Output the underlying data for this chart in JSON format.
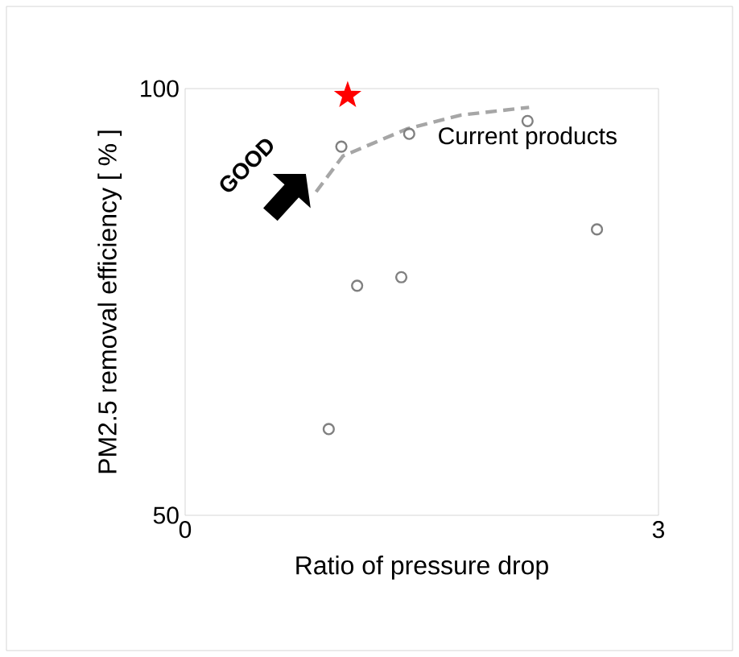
{
  "chart_data": {
    "type": "scatter",
    "xlabel": "Ratio of pressure drop",
    "ylabel": "PM2.5 removal efficiency [ % ]",
    "xlim": [
      0,
      3
    ],
    "xticks": [
      0,
      3
    ],
    "ylim": [
      50,
      100
    ],
    "yticks": [
      50,
      100
    ],
    "grid": false,
    "annotations": [
      "GOOD"
    ],
    "series": [
      {
        "name": "Current products",
        "marker": "circle",
        "color": "#808080",
        "x": [
          0.99,
          1.42,
          2.17,
          2.61,
          1.37,
          1.09,
          0.91
        ],
        "values": [
          93.2,
          94.7,
          96.2,
          83.5,
          77.9,
          76.9,
          60.1
        ]
      },
      {
        "type": "line",
        "line_style": "dashed",
        "marker": "none",
        "color": "#a6a6a6",
        "x": [
          0.83,
          1.0,
          1.41,
          1.75,
          2.18
        ],
        "values": [
          87.9,
          92.1,
          95.3,
          96.9,
          97.8
        ]
      },
      {
        "type": "scatter",
        "marker": "star",
        "color": "#ff0000",
        "x": [
          1.03
        ],
        "values": [
          99.2
        ]
      }
    ]
  }
}
